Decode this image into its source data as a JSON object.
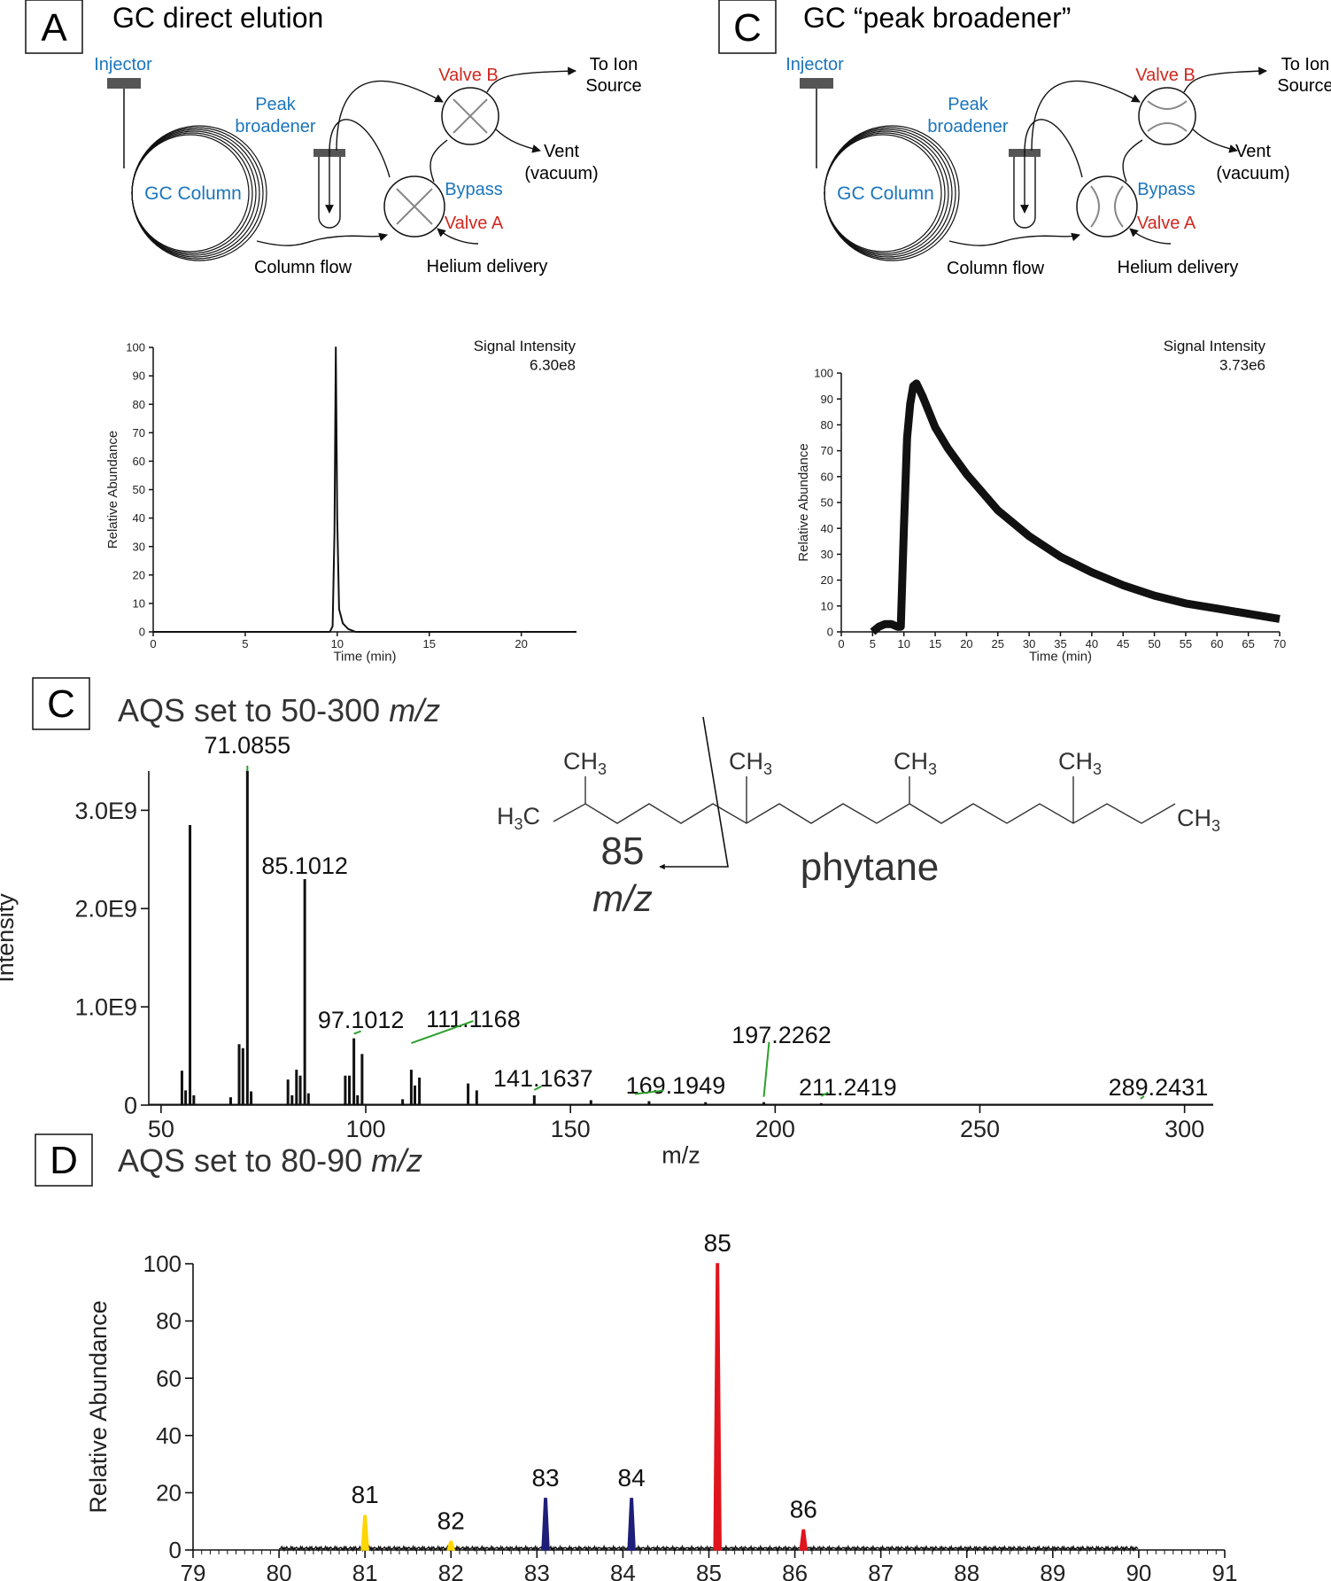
{
  "panel_a": {
    "letter": "A",
    "title": "GC direct elution",
    "labels": {
      "injector": "Injector",
      "peak_broadener_1": "Peak",
      "peak_broadener_2": "broadener",
      "gc_column": "GC Column",
      "valve_b": "Valve B",
      "to_ion_1": "To Ion",
      "to_ion_2": "Source",
      "vent_1": "Vent",
      "vent_2": "(vacuum)",
      "bypass": "Bypass",
      "valve_a": "Valve A",
      "column_flow": "Column flow",
      "helium": "Helium delivery"
    }
  },
  "panel_c_top": {
    "letter": "C",
    "title": "GC “peak broadener”",
    "labels": {
      "injector": "Injector",
      "peak_broadener_1": "Peak",
      "peak_broadener_2": "broadener",
      "gc_column": "GC Column",
      "valve_b": "Valve B",
      "to_ion_1": "To Ion",
      "to_ion_2": "Source",
      "vent_1": "Vent",
      "vent_2": "(vacuum)",
      "bypass": "Bypass",
      "valve_a": "Valve A",
      "column_flow": "Column flow",
      "helium": "Helium delivery"
    }
  },
  "panel_c2": {
    "letter": "C",
    "title_prefix": "AQS set to 50-300 ",
    "title_italic": "m/z",
    "molecule": {
      "name": "phytane",
      "ch3": "CH",
      "sub3": "3",
      "h3c_h": "H",
      "h3c_c": "C",
      "fragment_value": "85",
      "fragment_unit": "m/z"
    }
  },
  "panel_d": {
    "letter": "D",
    "title_prefix": "AQS set to 80-90 ",
    "title_italic": "m/z"
  },
  "colors": {
    "blue_label": "#1b75bc",
    "red_label": "#d0281f",
    "green_leader": "#2ca02c",
    "peak_yellow": "#ffd600",
    "peak_navy": "#1f1f7a",
    "peak_red": "#e0141c"
  },
  "chart_data": [
    {
      "id": "chrom_a",
      "type": "line",
      "ylabel": "Relative Abundance",
      "xlabel": "Time (min)",
      "annotation_1": "Signal Intensity",
      "annotation_2": "6.30e8",
      "xlim": [
        0,
        23
      ],
      "ylim": [
        0,
        100
      ],
      "xticks": [
        0,
        5,
        10,
        15,
        20
      ],
      "yticks": [
        0,
        10,
        20,
        30,
        40,
        50,
        60,
        70,
        80,
        90,
        100
      ],
      "x": [
        0,
        9.6,
        9.75,
        9.85,
        9.92,
        10.0,
        10.1,
        10.3,
        10.6,
        11.0,
        23
      ],
      "y": [
        0,
        0,
        2,
        35,
        100,
        40,
        8,
        3,
        1,
        0,
        0
      ]
    },
    {
      "id": "chrom_c",
      "type": "line",
      "ylabel": "Relative Abundance",
      "xlabel": "Time (min)",
      "annotation_1": "Signal Intensity",
      "annotation_2": "3.73e6",
      "xlim": [
        0,
        70
      ],
      "ylim": [
        0,
        100
      ],
      "xticks": [
        0,
        5,
        10,
        15,
        20,
        25,
        30,
        35,
        40,
        45,
        50,
        55,
        60,
        65,
        70
      ],
      "yticks": [
        0,
        10,
        20,
        30,
        40,
        50,
        60,
        70,
        80,
        90,
        100
      ],
      "x": [
        5,
        6,
        7,
        8,
        9,
        9.5,
        10,
        10.5,
        11,
        11.5,
        12,
        13,
        14,
        15,
        17,
        20,
        25,
        30,
        35,
        40,
        45,
        50,
        55,
        60,
        65,
        70
      ],
      "y": [
        0,
        2,
        3,
        3,
        2,
        2,
        40,
        75,
        88,
        95,
        96,
        91,
        85,
        79,
        71,
        61,
        47,
        37,
        29,
        23,
        18,
        14,
        11,
        9,
        7,
        5
      ]
    },
    {
      "id": "ms_c",
      "type": "bar",
      "ylabel": "Intensity",
      "xlabel": "m/z",
      "xlim": [
        47,
        307
      ],
      "ylim": [
        0,
        3.4
      ],
      "xticks": [
        50,
        100,
        150,
        200,
        250,
        300
      ],
      "yticks": [
        {
          "value": 0,
          "label": "0"
        },
        {
          "value": 1.0,
          "label": "1.0E9"
        },
        {
          "value": 2.0,
          "label": "2.0E9"
        },
        {
          "value": 3.0,
          "label": "3.0E9"
        }
      ],
      "peaks": [
        {
          "x": 55.1,
          "y": 0.35
        },
        {
          "x": 56.0,
          "y": 0.15
        },
        {
          "x": 57.07,
          "y": 2.85
        },
        {
          "x": 58.0,
          "y": 0.1
        },
        {
          "x": 67.0,
          "y": 0.08
        },
        {
          "x": 69.07,
          "y": 0.62
        },
        {
          "x": 70.0,
          "y": 0.58
        },
        {
          "x": 71.0855,
          "y": 3.4
        },
        {
          "x": 72.0,
          "y": 0.14
        },
        {
          "x": 81.0,
          "y": 0.26
        },
        {
          "x": 82.0,
          "y": 0.1
        },
        {
          "x": 83.08,
          "y": 0.36
        },
        {
          "x": 84.0,
          "y": 0.3
        },
        {
          "x": 85.1012,
          "y": 2.3
        },
        {
          "x": 86.0,
          "y": 0.12
        },
        {
          "x": 95.0,
          "y": 0.3
        },
        {
          "x": 96.0,
          "y": 0.3
        },
        {
          "x": 97.1012,
          "y": 0.68
        },
        {
          "x": 98.0,
          "y": 0.1
        },
        {
          "x": 99.1,
          "y": 0.52
        },
        {
          "x": 109.0,
          "y": 0.06
        },
        {
          "x": 111.1168,
          "y": 0.36
        },
        {
          "x": 112.0,
          "y": 0.2
        },
        {
          "x": 113.1,
          "y": 0.28
        },
        {
          "x": 125.0,
          "y": 0.22
        },
        {
          "x": 127.1,
          "y": 0.15
        },
        {
          "x": 141.1637,
          "y": 0.1
        },
        {
          "x": 155.0,
          "y": 0.05
        },
        {
          "x": 169.1949,
          "y": 0.04
        },
        {
          "x": 183.0,
          "y": 0.03
        },
        {
          "x": 197.2262,
          "y": 0.03
        },
        {
          "x": 211.2419,
          "y": 0.02
        },
        {
          "x": 289.2431,
          "y": 0.01
        }
      ],
      "annotations": [
        {
          "label": "71.0855",
          "x": 71.0855
        },
        {
          "label": "85.1012",
          "x": 85.1012
        },
        {
          "label": "97.1012",
          "x": 97.1012
        },
        {
          "label": "111.1168",
          "x": 111.1168
        },
        {
          "label": "141.1637",
          "x": 141.1637
        },
        {
          "label": "169.1949",
          "x": 169.1949
        },
        {
          "label": "197.2262",
          "x": 197.2262
        },
        {
          "label": "211.2419",
          "x": 211.2419
        },
        {
          "label": "289.2431",
          "x": 289.2431
        }
      ]
    },
    {
      "id": "ms_d",
      "type": "bar",
      "ylabel": "Relative Abundance",
      "xlabel": "",
      "xlim": [
        79,
        91
      ],
      "ylim": [
        0,
        100
      ],
      "xticks": [
        79,
        80,
        81,
        82,
        83,
        84,
        85,
        86,
        87,
        88,
        89,
        90,
        91
      ],
      "yticks": [
        0,
        20,
        40,
        60,
        80,
        100
      ],
      "peaks": [
        {
          "x": 81.0,
          "y": 12,
          "label": "81",
          "color": "#ffd600"
        },
        {
          "x": 82.0,
          "y": 3,
          "label": "82",
          "color": "#ffd600"
        },
        {
          "x": 83.1,
          "y": 18,
          "label": "83",
          "color": "#1f1f7a"
        },
        {
          "x": 84.1,
          "y": 18,
          "label": "84",
          "color": "#1f1f7a"
        },
        {
          "x": 85.1,
          "y": 100,
          "label": "85",
          "color": "#e0141c"
        },
        {
          "x": 86.1,
          "y": 7,
          "label": "86",
          "color": "#e0141c"
        }
      ]
    }
  ]
}
